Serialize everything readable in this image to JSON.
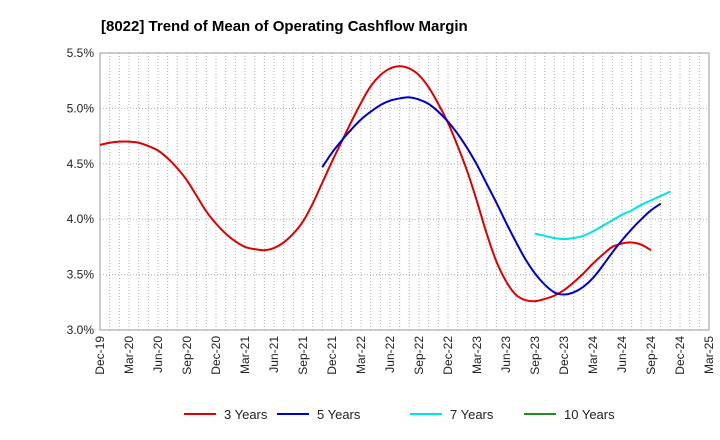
{
  "chart_data": {
    "type": "line",
    "title": "[8022]  Trend of Mean of Operating Cashflow Margin",
    "xlabel": "",
    "ylabel": "",
    "x_ticks": [
      "Dec-19",
      "Mar-20",
      "Jun-20",
      "Sep-20",
      "Dec-20",
      "Mar-21",
      "Jun-21",
      "Sep-21",
      "Dec-21",
      "Mar-22",
      "Jun-22",
      "Sep-22",
      "Dec-22",
      "Mar-23",
      "Jun-23",
      "Sep-23",
      "Dec-23",
      "Mar-24",
      "Jun-24",
      "Sep-24",
      "Dec-24",
      "Mar-25"
    ],
    "y_ticks": [
      "3.0%",
      "3.5%",
      "4.0%",
      "4.5%",
      "5.0%",
      "5.5%"
    ],
    "ylim": [
      3.0,
      5.5
    ],
    "grid": true,
    "legend_position": "bottom",
    "series": [
      {
        "name": "3 Years",
        "color": "#dd0000",
        "points": [
          [
            "Dec-19",
            4.67
          ],
          [
            "Jan-20",
            4.69
          ],
          [
            "Feb-20",
            4.7
          ],
          [
            "Mar-20",
            4.7
          ],
          [
            "Apr-20",
            4.69
          ],
          [
            "May-20",
            4.66
          ],
          [
            "Jun-20",
            4.62
          ],
          [
            "Jul-20",
            4.55
          ],
          [
            "Aug-20",
            4.46
          ],
          [
            "Sep-20",
            4.35
          ],
          [
            "Oct-20",
            4.21
          ],
          [
            "Nov-20",
            4.07
          ],
          [
            "Dec-20",
            3.96
          ],
          [
            "Jan-21",
            3.87
          ],
          [
            "Feb-21",
            3.8
          ],
          [
            "Mar-21",
            3.75
          ],
          [
            "Apr-21",
            3.73
          ],
          [
            "May-21",
            3.72
          ],
          [
            "Jun-21",
            3.74
          ],
          [
            "Jul-21",
            3.79
          ],
          [
            "Aug-21",
            3.87
          ],
          [
            "Sep-21",
            3.98
          ],
          [
            "Oct-21",
            4.14
          ],
          [
            "Nov-21",
            4.33
          ],
          [
            "Dec-21",
            4.52
          ],
          [
            "Jan-22",
            4.7
          ],
          [
            "Feb-22",
            4.88
          ],
          [
            "Mar-22",
            5.05
          ],
          [
            "Apr-22",
            5.2
          ],
          [
            "May-22",
            5.3
          ],
          [
            "Jun-22",
            5.36
          ],
          [
            "Jul-22",
            5.38
          ],
          [
            "Aug-22",
            5.36
          ],
          [
            "Sep-22",
            5.3
          ],
          [
            "Oct-22",
            5.19
          ],
          [
            "Nov-22",
            5.04
          ],
          [
            "Dec-22",
            4.87
          ],
          [
            "Jan-23",
            4.66
          ],
          [
            "Feb-23",
            4.43
          ],
          [
            "Mar-23",
            4.16
          ],
          [
            "Apr-23",
            3.87
          ],
          [
            "May-23",
            3.62
          ],
          [
            "Jun-23",
            3.44
          ],
          [
            "Jul-23",
            3.32
          ],
          [
            "Aug-23",
            3.27
          ],
          [
            "Sep-23",
            3.26
          ],
          [
            "Oct-23",
            3.28
          ],
          [
            "Nov-23",
            3.31
          ],
          [
            "Dec-23",
            3.36
          ],
          [
            "Jan-24",
            3.43
          ],
          [
            "Feb-24",
            3.51
          ],
          [
            "Mar-24",
            3.6
          ],
          [
            "Apr-24",
            3.68
          ],
          [
            "May-24",
            3.75
          ],
          [
            "Jun-24",
            3.78
          ],
          [
            "Jul-24",
            3.79
          ],
          [
            "Aug-24",
            3.77
          ],
          [
            "Sep-24",
            3.72
          ]
        ]
      },
      {
        "name": "5 Years",
        "color": "#0000cc",
        "points": [
          [
            "Nov-21",
            4.47
          ],
          [
            "Dec-21",
            4.6
          ],
          [
            "Jan-22",
            4.71
          ],
          [
            "Feb-22",
            4.81
          ],
          [
            "Mar-22",
            4.9
          ],
          [
            "Apr-22",
            4.97
          ],
          [
            "May-22",
            5.03
          ],
          [
            "Jun-22",
            5.07
          ],
          [
            "Jul-22",
            5.09
          ],
          [
            "Aug-22",
            5.1
          ],
          [
            "Sep-22",
            5.08
          ],
          [
            "Oct-22",
            5.04
          ],
          [
            "Nov-22",
            4.97
          ],
          [
            "Dec-22",
            4.88
          ],
          [
            "Jan-23",
            4.77
          ],
          [
            "Feb-23",
            4.64
          ],
          [
            "Mar-23",
            4.49
          ],
          [
            "Apr-23",
            4.32
          ],
          [
            "May-23",
            4.15
          ],
          [
            "Jun-23",
            3.97
          ],
          [
            "Jul-23",
            3.8
          ],
          [
            "Aug-23",
            3.64
          ],
          [
            "Sep-23",
            3.51
          ],
          [
            "Oct-23",
            3.41
          ],
          [
            "Nov-23",
            3.34
          ],
          [
            "Dec-23",
            3.32
          ],
          [
            "Jan-24",
            3.34
          ],
          [
            "Feb-24",
            3.39
          ],
          [
            "Mar-24",
            3.47
          ],
          [
            "Apr-24",
            3.58
          ],
          [
            "May-24",
            3.7
          ],
          [
            "Jun-24",
            3.81
          ],
          [
            "Jul-24",
            3.91
          ],
          [
            "Aug-24",
            4.0
          ],
          [
            "Sep-24",
            4.08
          ],
          [
            "Oct-24",
            4.14
          ]
        ]
      },
      {
        "name": "7 Years",
        "color": "#00e5e5",
        "points": [
          [
            "Sep-23",
            3.87
          ],
          [
            "Oct-23",
            3.85
          ],
          [
            "Nov-23",
            3.83
          ],
          [
            "Dec-23",
            3.82
          ],
          [
            "Jan-24",
            3.83
          ],
          [
            "Feb-24",
            3.85
          ],
          [
            "Mar-24",
            3.89
          ],
          [
            "Apr-24",
            3.94
          ],
          [
            "May-24",
            3.99
          ],
          [
            "Jun-24",
            4.04
          ],
          [
            "Jul-24",
            4.08
          ],
          [
            "Aug-24",
            4.13
          ],
          [
            "Sep-24",
            4.17
          ],
          [
            "Oct-24",
            4.21
          ],
          [
            "Nov-24",
            4.25
          ]
        ]
      },
      {
        "name": "10 Years",
        "color": "#228b22",
        "points": []
      }
    ]
  }
}
